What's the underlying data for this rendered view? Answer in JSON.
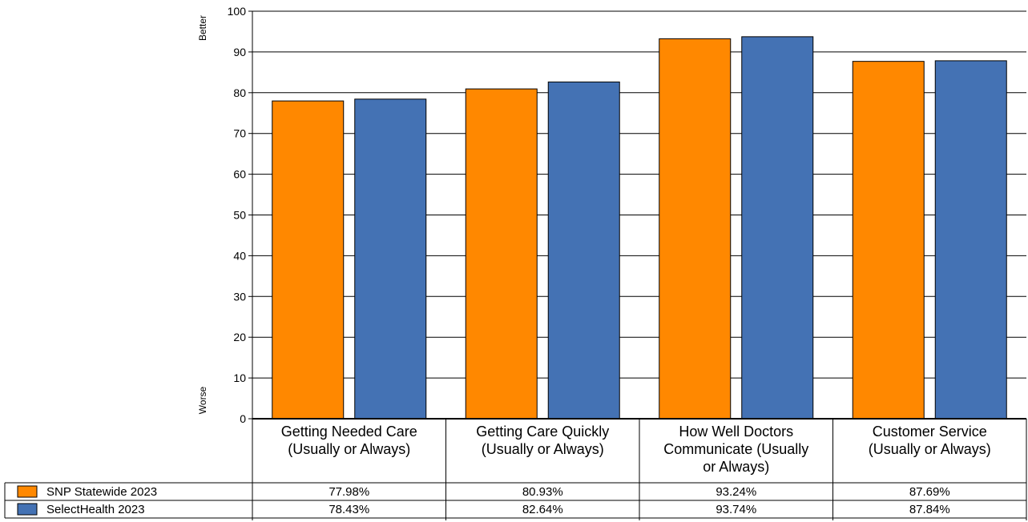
{
  "chart_data": {
    "type": "bar",
    "ylim": [
      0,
      100
    ],
    "yticks": [
      0,
      10,
      20,
      30,
      40,
      50,
      60,
      70,
      80,
      90,
      100
    ],
    "y_top_label": "Better",
    "y_bottom_label": "Worse",
    "grid": true,
    "legend_position": "bottom-left table",
    "categories": [
      [
        "Getting Needed Care",
        "(Usually or Always)"
      ],
      [
        "Getting Care Quickly",
        "(Usually or Always)"
      ],
      [
        "How Well Doctors",
        "Communicate (Usually",
        "or Always)"
      ],
      [
        "Customer Service",
        "(Usually or Always)"
      ]
    ],
    "series": [
      {
        "name": "SNP Statewide 2023",
        "color": "#FF8800",
        "values": [
          77.98,
          80.93,
          93.24,
          87.69
        ],
        "labels": [
          "77.98%",
          "80.93%",
          "93.24%",
          "87.69%"
        ]
      },
      {
        "name": "SelectHealth 2023",
        "color": "#4472B4",
        "values": [
          78.43,
          82.64,
          93.74,
          87.84
        ],
        "labels": [
          "78.43%",
          "82.64%",
          "93.74%",
          "87.84%"
        ]
      }
    ]
  }
}
